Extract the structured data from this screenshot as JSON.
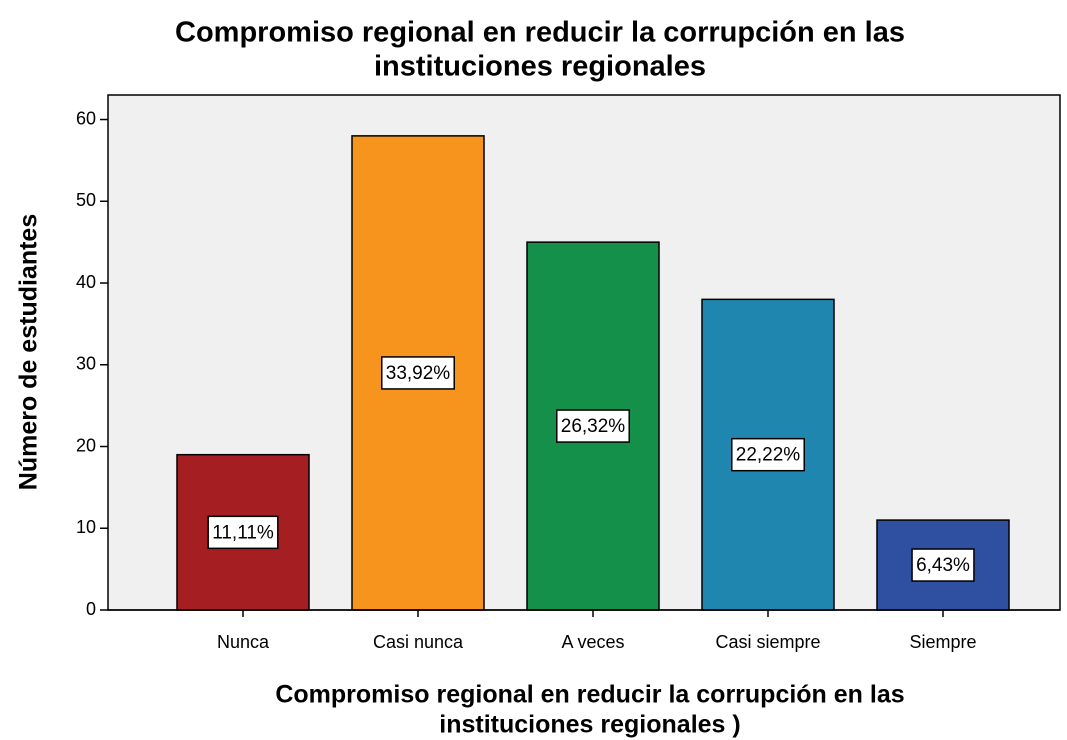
{
  "chart_data": {
    "type": "bar",
    "title": [
      "Compromiso regional en reducir la corrupción en las",
      "instituciones regionales"
    ],
    "x_label": [
      "Compromiso regional en reducir la corrupción en las",
      "instituciones regionales )"
    ],
    "y_label": "Número de estudiantes",
    "categories": [
      "Nunca",
      "Casi nunca",
      "A veces",
      "Casi siempre",
      "Siempre"
    ],
    "values": [
      19,
      58,
      45,
      38,
      11
    ],
    "colors": [
      "#a41e22",
      "#f7941e",
      "#14904b",
      "#1f86b0",
      "#2f4fa0"
    ],
    "percentages": [
      11.11,
      33.92,
      26.32,
      22.22,
      6.43
    ],
    "percentage_labels": [
      "11,11%",
      "33,92%",
      "26,32%",
      "22,22%",
      "6,43%"
    ],
    "ylim": [
      0,
      63
    ],
    "yticks": [
      0,
      10,
      20,
      30,
      40,
      50,
      60
    ],
    "grid": false
  }
}
